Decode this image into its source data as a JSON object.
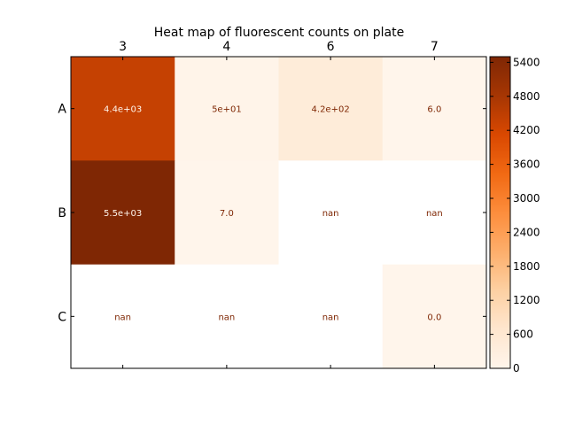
{
  "chart_data": {
    "type": "heatmap",
    "title": "Heat map of fluorescent counts on plate",
    "x_categories": [
      "3",
      "4",
      "6",
      "7"
    ],
    "y_categories": [
      "A",
      "B",
      "C"
    ],
    "values": [
      [
        4400,
        50,
        420,
        6.0
      ],
      [
        5500,
        7.0,
        null,
        null
      ],
      [
        null,
        null,
        null,
        0.0
      ]
    ],
    "cell_labels": [
      [
        "4.4e+03",
        "5e+01",
        "4.2e+02",
        "6.0"
      ],
      [
        "5.5e+03",
        "7.0",
        "nan",
        "nan"
      ],
      [
        "nan",
        "nan",
        "nan",
        "0.0"
      ]
    ],
    "colorbar": {
      "ticks": [
        "0",
        "600",
        "1200",
        "1800",
        "2400",
        "3000",
        "3600",
        "4200",
        "4800",
        "5400"
      ],
      "range": [
        0,
        5500
      ],
      "colormap": "Oranges"
    },
    "colors": {
      "low": "#fff5eb",
      "high": "#7f2704",
      "nan": "#ffffff",
      "label_dark": "#7f2704",
      "label_light": "#fff5eb"
    },
    "x_axis_position": "top",
    "grid": false
  }
}
